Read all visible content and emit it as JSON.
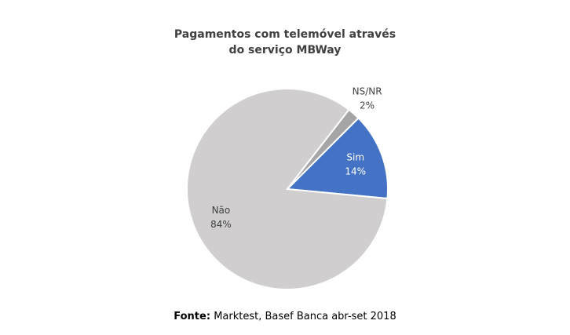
{
  "chart_data": {
    "type": "pie",
    "title": "Pagamentos com telemóvel através do serviço MBWay",
    "categories": [
      "Sim",
      "Não",
      "NS/NR"
    ],
    "values": [
      14,
      84,
      2
    ],
    "value_labels": [
      "14%",
      "84%",
      "2%"
    ],
    "colors": [
      "#4472c4",
      "#d0cece",
      "#a5a5a5"
    ],
    "source_label": "Fonte:",
    "source": "Marktest, Basef Banca abr-set 2018"
  }
}
